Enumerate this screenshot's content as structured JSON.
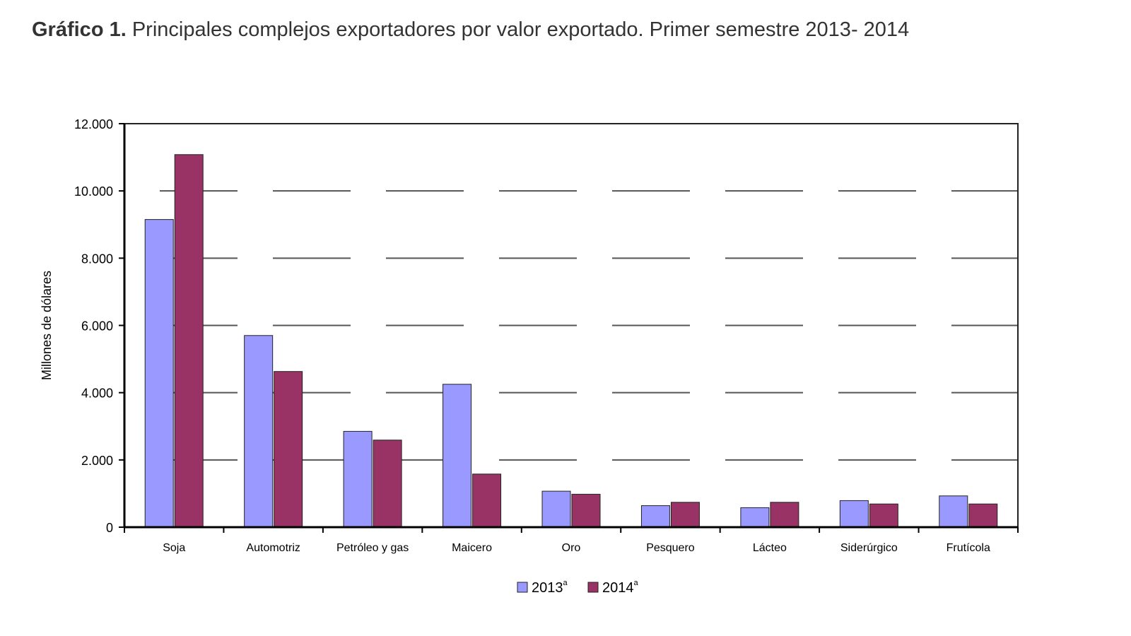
{
  "title": {
    "bold": "Gráfico 1.",
    "text": "Principales complejos exportadores por valor exportado. Primer semestre  2013- 2014"
  },
  "chart_data": {
    "type": "bar",
    "categories": [
      "Soja",
      "Automotriz",
      "Petróleo y gas",
      "Maicero",
      "Oro",
      "Pesquero",
      "Lácteo",
      "Siderúrgico",
      "Frutícola"
    ],
    "series": [
      {
        "name": "2013",
        "superscript": "a",
        "color": "#9999ff",
        "values": [
          9150,
          5700,
          2850,
          4250,
          1070,
          640,
          580,
          790,
          930
        ]
      },
      {
        "name": "2014",
        "superscript": "a",
        "color": "#993366",
        "values": [
          11080,
          4630,
          2590,
          1580,
          980,
          740,
          740,
          690,
          690
        ]
      }
    ],
    "ylabel": "Millones de dólares",
    "xlabel": "",
    "ylim": [
      0,
      12000
    ],
    "yticks": [
      0,
      2000,
      4000,
      6000,
      8000,
      10000,
      12000
    ],
    "ytick_labels": [
      "0",
      "2.000",
      "4.000",
      "6.000",
      "8.000",
      "10.000",
      "12.000"
    ],
    "grid": true,
    "legend_position": "bottom"
  }
}
